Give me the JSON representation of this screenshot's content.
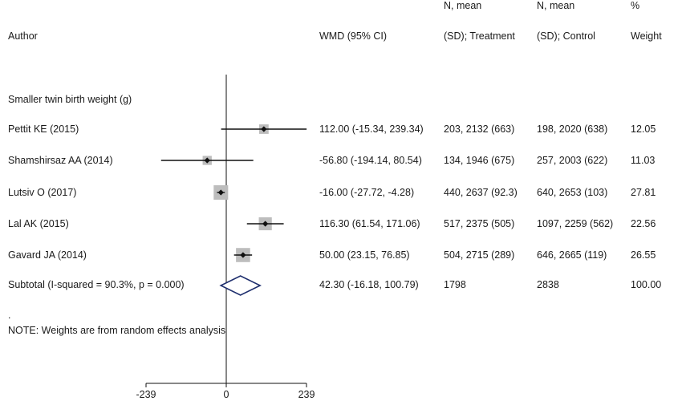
{
  "headers": {
    "author": "Author",
    "wmd": "WMD (95% CI)",
    "treatment_line1": "N, mean",
    "treatment_line2": "(SD); Treatment",
    "control_line1": "N, mean",
    "control_line2": "(SD); Control",
    "weight_line1": "%",
    "weight_line2": "Weight"
  },
  "section_label": "Smaller twin birth weight (g)",
  "note_dot": ".",
  "note": "NOTE: Weights are from random effects analysis",
  "chart_data": {
    "type": "forest",
    "xlim": [
      -239,
      239
    ],
    "null_line": 0,
    "x_ticks": [
      -239,
      0,
      239
    ],
    "studies": [
      {
        "author": "Pettit KE (2015)",
        "wmd": 112.0,
        "ci": [
          -15.34,
          239.34
        ],
        "wmd_text": "112.00 (-15.34, 239.34)",
        "treatment": "203, 2132 (663)",
        "control": "198, 2020 (638)",
        "weight": 12.05,
        "weight_text": "12.05",
        "arrow_right": true
      },
      {
        "author": "Shamshirsaz AA (2014)",
        "wmd": -56.8,
        "ci": [
          -194.14,
          80.54
        ],
        "wmd_text": "-56.80 (-194.14, 80.54)",
        "treatment": "134, 1946 (675)",
        "control": "257, 2003 (622)",
        "weight": 11.03,
        "weight_text": "11.03"
      },
      {
        "author": "Lutsiv O (2017)",
        "wmd": -16.0,
        "ci": [
          -27.72,
          -4.28
        ],
        "wmd_text": "-16.00 (-27.72, -4.28)",
        "treatment": "440, 2637 (92.3)",
        "control": "640, 2653 (103)",
        "weight": 27.81,
        "weight_text": "27.81"
      },
      {
        "author": "Lal AK (2015)",
        "wmd": 116.3,
        "ci": [
          61.54,
          171.06
        ],
        "wmd_text": "116.30 (61.54, 171.06)",
        "treatment": "517, 2375 (505)",
        "control": "1097, 2259 (562)",
        "weight": 22.56,
        "weight_text": "22.56"
      },
      {
        "author": "Gavard JA (2014)",
        "wmd": 50.0,
        "ci": [
          23.15,
          76.85
        ],
        "wmd_text": "50.00 (23.15, 76.85)",
        "treatment": "504, 2715 (289)",
        "control": "646, 2665 (119)",
        "weight": 26.55,
        "weight_text": "26.55"
      }
    ],
    "subtotal": {
      "label": "Subtotal  (I-squared = 90.3%, p = 0.000)",
      "wmd": 42.3,
      "ci": [
        -16.18,
        100.79
      ],
      "wmd_text": "42.30 (-16.18, 100.79)",
      "treatment": "1798",
      "control": "2838",
      "weight_text": "100.00",
      "diamond_color": "#1f2f6e"
    }
  }
}
